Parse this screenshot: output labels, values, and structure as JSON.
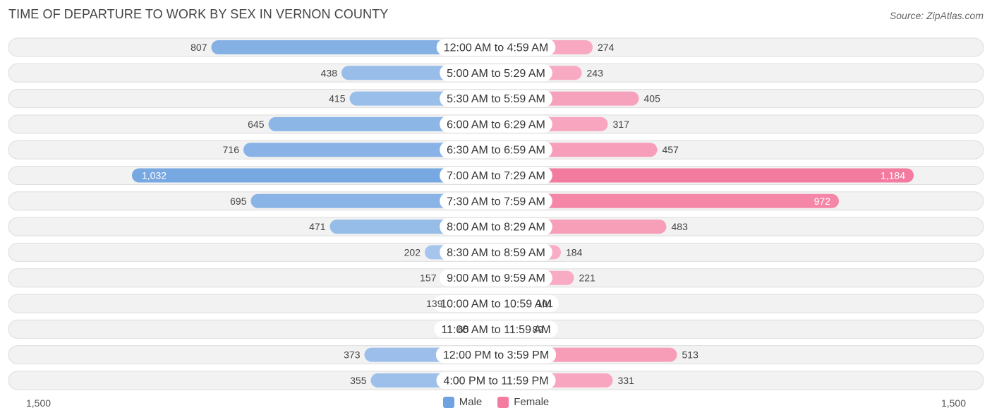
{
  "chart_data": {
    "type": "bar",
    "orientation": "horizontal-diverging",
    "title": "TIME OF DEPARTURE TO WORK BY SEX IN VERNON COUNTY",
    "source": "Source: ZipAtlas.com",
    "categories": [
      "12:00 AM to 4:59 AM",
      "5:00 AM to 5:29 AM",
      "5:30 AM to 5:59 AM",
      "6:00 AM to 6:29 AM",
      "6:30 AM to 6:59 AM",
      "7:00 AM to 7:29 AM",
      "7:30 AM to 7:59 AM",
      "8:00 AM to 8:29 AM",
      "8:30 AM to 8:59 AM",
      "9:00 AM to 9:59 AM",
      "10:00 AM to 10:59 AM",
      "11:00 AM to 11:59 AM",
      "12:00 PM to 3:59 PM",
      "4:00 PM to 11:59 PM"
    ],
    "series": [
      {
        "name": "Male",
        "color": "#6fa3e0",
        "values": [
          807,
          438,
          415,
          645,
          716,
          1032,
          695,
          471,
          202,
          157,
          139,
          65,
          373,
          355
        ]
      },
      {
        "name": "Female",
        "color": "#f47ba0",
        "values": [
          274,
          243,
          405,
          317,
          457,
          1184,
          972,
          483,
          184,
          221,
          101,
          89,
          513,
          331
        ]
      }
    ],
    "value_labels": {
      "Male": [
        "807",
        "438",
        "415",
        "645",
        "716",
        "1,032",
        "695",
        "471",
        "202",
        "157",
        "139",
        "65",
        "373",
        "355"
      ],
      "Female": [
        "274",
        "243",
        "405",
        "317",
        "457",
        "1,184",
        "972",
        "483",
        "184",
        "221",
        "101",
        "89",
        "513",
        "331"
      ]
    },
    "xlim": [
      -1500,
      1500
    ],
    "axis_labels": {
      "left": "1,500",
      "right": "1,500"
    },
    "legend": [
      "Male",
      "Female"
    ],
    "legend_position": "bottom-center"
  }
}
